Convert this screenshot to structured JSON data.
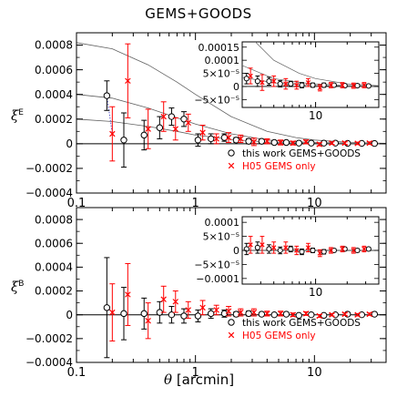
{
  "chart_data": [
    {
      "type": "scatter",
      "title": "GEMS+GOODS",
      "ylabel": "ξ^E",
      "xlabel": "",
      "xscale": "log",
      "xlim": [
        0.1,
        40
      ],
      "ylim": [
        -0.0004,
        0.0009
      ],
      "yticks": [
        -0.0004,
        -0.0002,
        0,
        0.0002,
        0.0004,
        0.0006,
        0.0008
      ],
      "ytick_labels": [
        "−0.0004",
        "−0.0002",
        "0",
        "0.0002",
        "0.0004",
        "0.0006",
        "0.0008"
      ],
      "xtick_labels": [
        "0.1",
        "1",
        "10"
      ],
      "legend_position": "bottom-right",
      "series": [
        {
          "name": "this work GEMS+GOODS",
          "marker": "circle",
          "color": "#000000",
          "x": [
            0.18,
            0.25,
            0.37,
            0.5,
            0.63,
            0.8,
            1.05,
            1.35,
            1.75,
            2.2,
            2.8,
            3.6,
            4.6,
            5.8,
            7.4,
            9.4,
            12,
            15,
            19,
            25,
            32
          ],
          "y": [
            0.00039,
            3e-05,
            7e-05,
            0.00013,
            0.00022,
            0.0002,
            3e-05,
            4e-05,
            5e-05,
            3e-05,
            2e-05,
            2e-05,
            1e-05,
            1e-05,
            5e-06,
            5e-06,
            5e-06,
            5e-06,
            3e-06,
            3e-06,
            2e-06
          ],
          "yerr": [
            0.00012,
            0.00022,
            0.00012,
            9e-05,
            7e-05,
            6e-05,
            5e-05,
            4e-05,
            3e-05,
            2e-05,
            2e-05,
            1.5e-05,
            1.2e-05,
            1e-05,
            1e-05,
            8e-06,
            8e-06,
            6e-06,
            6e-06,
            6e-06,
            6e-06
          ]
        },
        {
          "name": "H05 GEMS only",
          "marker": "x",
          "color": "#ff0000",
          "x": [
            0.2,
            0.27,
            0.4,
            0.54,
            0.68,
            0.87,
            1.15,
            1.5,
            1.9,
            2.4,
            3.1,
            4.0,
            5.2,
            6.6,
            8.5,
            11,
            14,
            18,
            23,
            29
          ],
          "y": [
            8e-05,
            0.00051,
            0.00012,
            0.00022,
            0.00012,
            0.00017,
            9e-05,
            4e-05,
            5e-05,
            4e-05,
            1.5e-05,
            2e-05,
            1e-05,
            5e-06,
            1.5e-05,
            -5e-06,
            5e-06,
            5e-06,
            3e-06,
            5e-06
          ],
          "yerr": [
            0.00022,
            0.0003,
            0.00016,
            0.00012,
            9e-05,
            7e-05,
            6e-05,
            4e-05,
            4e-05,
            3e-05,
            3e-05,
            2e-05,
            2e-05,
            1.5e-05,
            1.5e-05,
            1.2e-05,
            1e-05,
            1e-05,
            1e-05,
            1e-05
          ]
        }
      ],
      "model_curves": [
        {
          "x": [
            0.1,
            0.2,
            0.4,
            0.7,
            1,
            2,
            4,
            7,
            10,
            20,
            40
          ],
          "y": [
            0.00082,
            0.00077,
            0.00064,
            0.0005,
            0.0004,
            0.00022,
            0.0001,
            5e-05,
            3e-05,
            1e-05,
            3e-06
          ]
        },
        {
          "x": [
            0.1,
            0.2,
            0.4,
            0.7,
            1,
            2,
            4,
            7,
            10,
            20,
            40
          ],
          "y": [
            0.0004,
            0.00037,
            0.00029,
            0.00021,
            0.00016,
            8e-05,
            3e-05,
            1.5e-05,
            1e-05,
            4e-06,
            1e-06
          ]
        },
        {
          "x": [
            0.1,
            0.2,
            0.4,
            0.7,
            1,
            2,
            4,
            7,
            10,
            20,
            40
          ],
          "y": [
            0.0002,
            0.00018,
            0.00014,
            0.0001,
            7e-05,
            3.5e-05,
            1.4e-05,
            6e-06,
            4e-06,
            1.5e-06,
            5e-07
          ]
        }
      ],
      "inset": {
        "xscale": "log",
        "xlim": [
          2,
          40
        ],
        "ylim": [
          -8e-05,
          0.00017
        ],
        "yticks": [
          -5e-05,
          0,
          5e-05,
          0.0001,
          0.00015
        ],
        "ytick_labels": [
          "−5×10⁻⁵",
          "0",
          "5×10⁻⁵",
          "0.0001",
          "0.00015"
        ],
        "xtick_labels": [
          "10"
        ]
      }
    },
    {
      "type": "scatter",
      "ylabel": "ξ^B",
      "xlabel": "θ [arcmin]",
      "xscale": "log",
      "xlim": [
        0.1,
        40
      ],
      "ylim": [
        -0.0004,
        0.0009
      ],
      "yticks": [
        -0.0004,
        -0.0002,
        0,
        0.0002,
        0.0004,
        0.0006,
        0.0008
      ],
      "ytick_labels": [
        "−0.0004",
        "−0.0002",
        "0",
        "0.0002",
        "0.0004",
        "0.0006",
        "0.0008"
      ],
      "xtick_labels": [
        "0.1",
        "1",
        "10"
      ],
      "legend_position": "bottom-right",
      "series": [
        {
          "name": "this work GEMS+GOODS",
          "marker": "circle",
          "color": "#000000",
          "x": [
            0.18,
            0.25,
            0.37,
            0.5,
            0.63,
            0.8,
            1.05,
            1.35,
            1.75,
            2.2,
            2.8,
            3.6,
            4.6,
            5.8,
            7.4,
            9.4,
            12,
            15,
            19,
            25,
            32
          ],
          "y": [
            6e-05,
            1e-05,
            1e-05,
            2e-05,
            0.0,
            -1e-05,
            -1e-05,
            1e-05,
            1e-05,
            5e-06,
            1e-05,
            5e-06,
            0.0,
            5e-06,
            -5e-06,
            0.0,
            -5e-06,
            0.0,
            5e-06,
            0.0,
            5e-06
          ],
          "yerr": [
            0.00042,
            0.00022,
            0.00013,
            9e-05,
            7e-05,
            6e-05,
            5e-05,
            4e-05,
            3e-05,
            2e-05,
            2e-05,
            1.5e-05,
            1.2e-05,
            1e-05,
            1e-05,
            8e-06,
            8e-06,
            6e-06,
            6e-06,
            6e-06,
            6e-06
          ]
        },
        {
          "name": "H05 GEMS only",
          "marker": "x",
          "color": "#ff0000",
          "x": [
            0.2,
            0.27,
            0.4,
            0.54,
            0.68,
            0.87,
            1.15,
            1.5,
            1.9,
            2.4,
            3.1,
            4.0,
            5.2,
            6.6,
            8.5,
            11,
            14,
            18,
            23,
            29
          ],
          "y": [
            2e-05,
            0.00017,
            -5e-05,
            0.00013,
            0.00011,
            4e-05,
            6e-05,
            4e-05,
            3e-05,
            2e-05,
            2e-05,
            1e-05,
            1e-05,
            0.0,
            1e-05,
            -1e-05,
            0.0,
            5e-06,
            0.0,
            5e-06
          ],
          "yerr": [
            0.00024,
            0.00026,
            0.00015,
            0.00011,
            9e-05,
            7e-05,
            6e-05,
            4e-05,
            4e-05,
            3e-05,
            3e-05,
            2e-05,
            2e-05,
            1.5e-05,
            1.5e-05,
            1.2e-05,
            1e-05,
            1e-05,
            1e-05,
            1e-05
          ]
        }
      ],
      "inset": {
        "xscale": "log",
        "xlim": [
          2,
          40
        ],
        "ylim": [
          -0.00012,
          0.00012
        ],
        "yticks": [
          -0.0001,
          -5e-05,
          0,
          5e-05,
          0.0001
        ],
        "ytick_labels": [
          "−0.0001",
          "−5×10⁻⁵",
          "0",
          "5×10⁻⁵",
          "0.0001"
        ],
        "xtick_labels": [
          "10"
        ]
      }
    }
  ],
  "labels": {
    "title": "GEMS+GOODS",
    "xlabel_theta": "θ",
    "xlabel_unit": "[arcmin]",
    "ylabel_top_sym": "ξ",
    "ylabel_top_sup": "E",
    "ylabel_bottom_sym": "ξ",
    "ylabel_bottom_sup": "B"
  },
  "colors": {
    "axis": "#000000",
    "red_series": "#ff0000",
    "model_line": "#606060",
    "link_line": "#5555cc"
  }
}
